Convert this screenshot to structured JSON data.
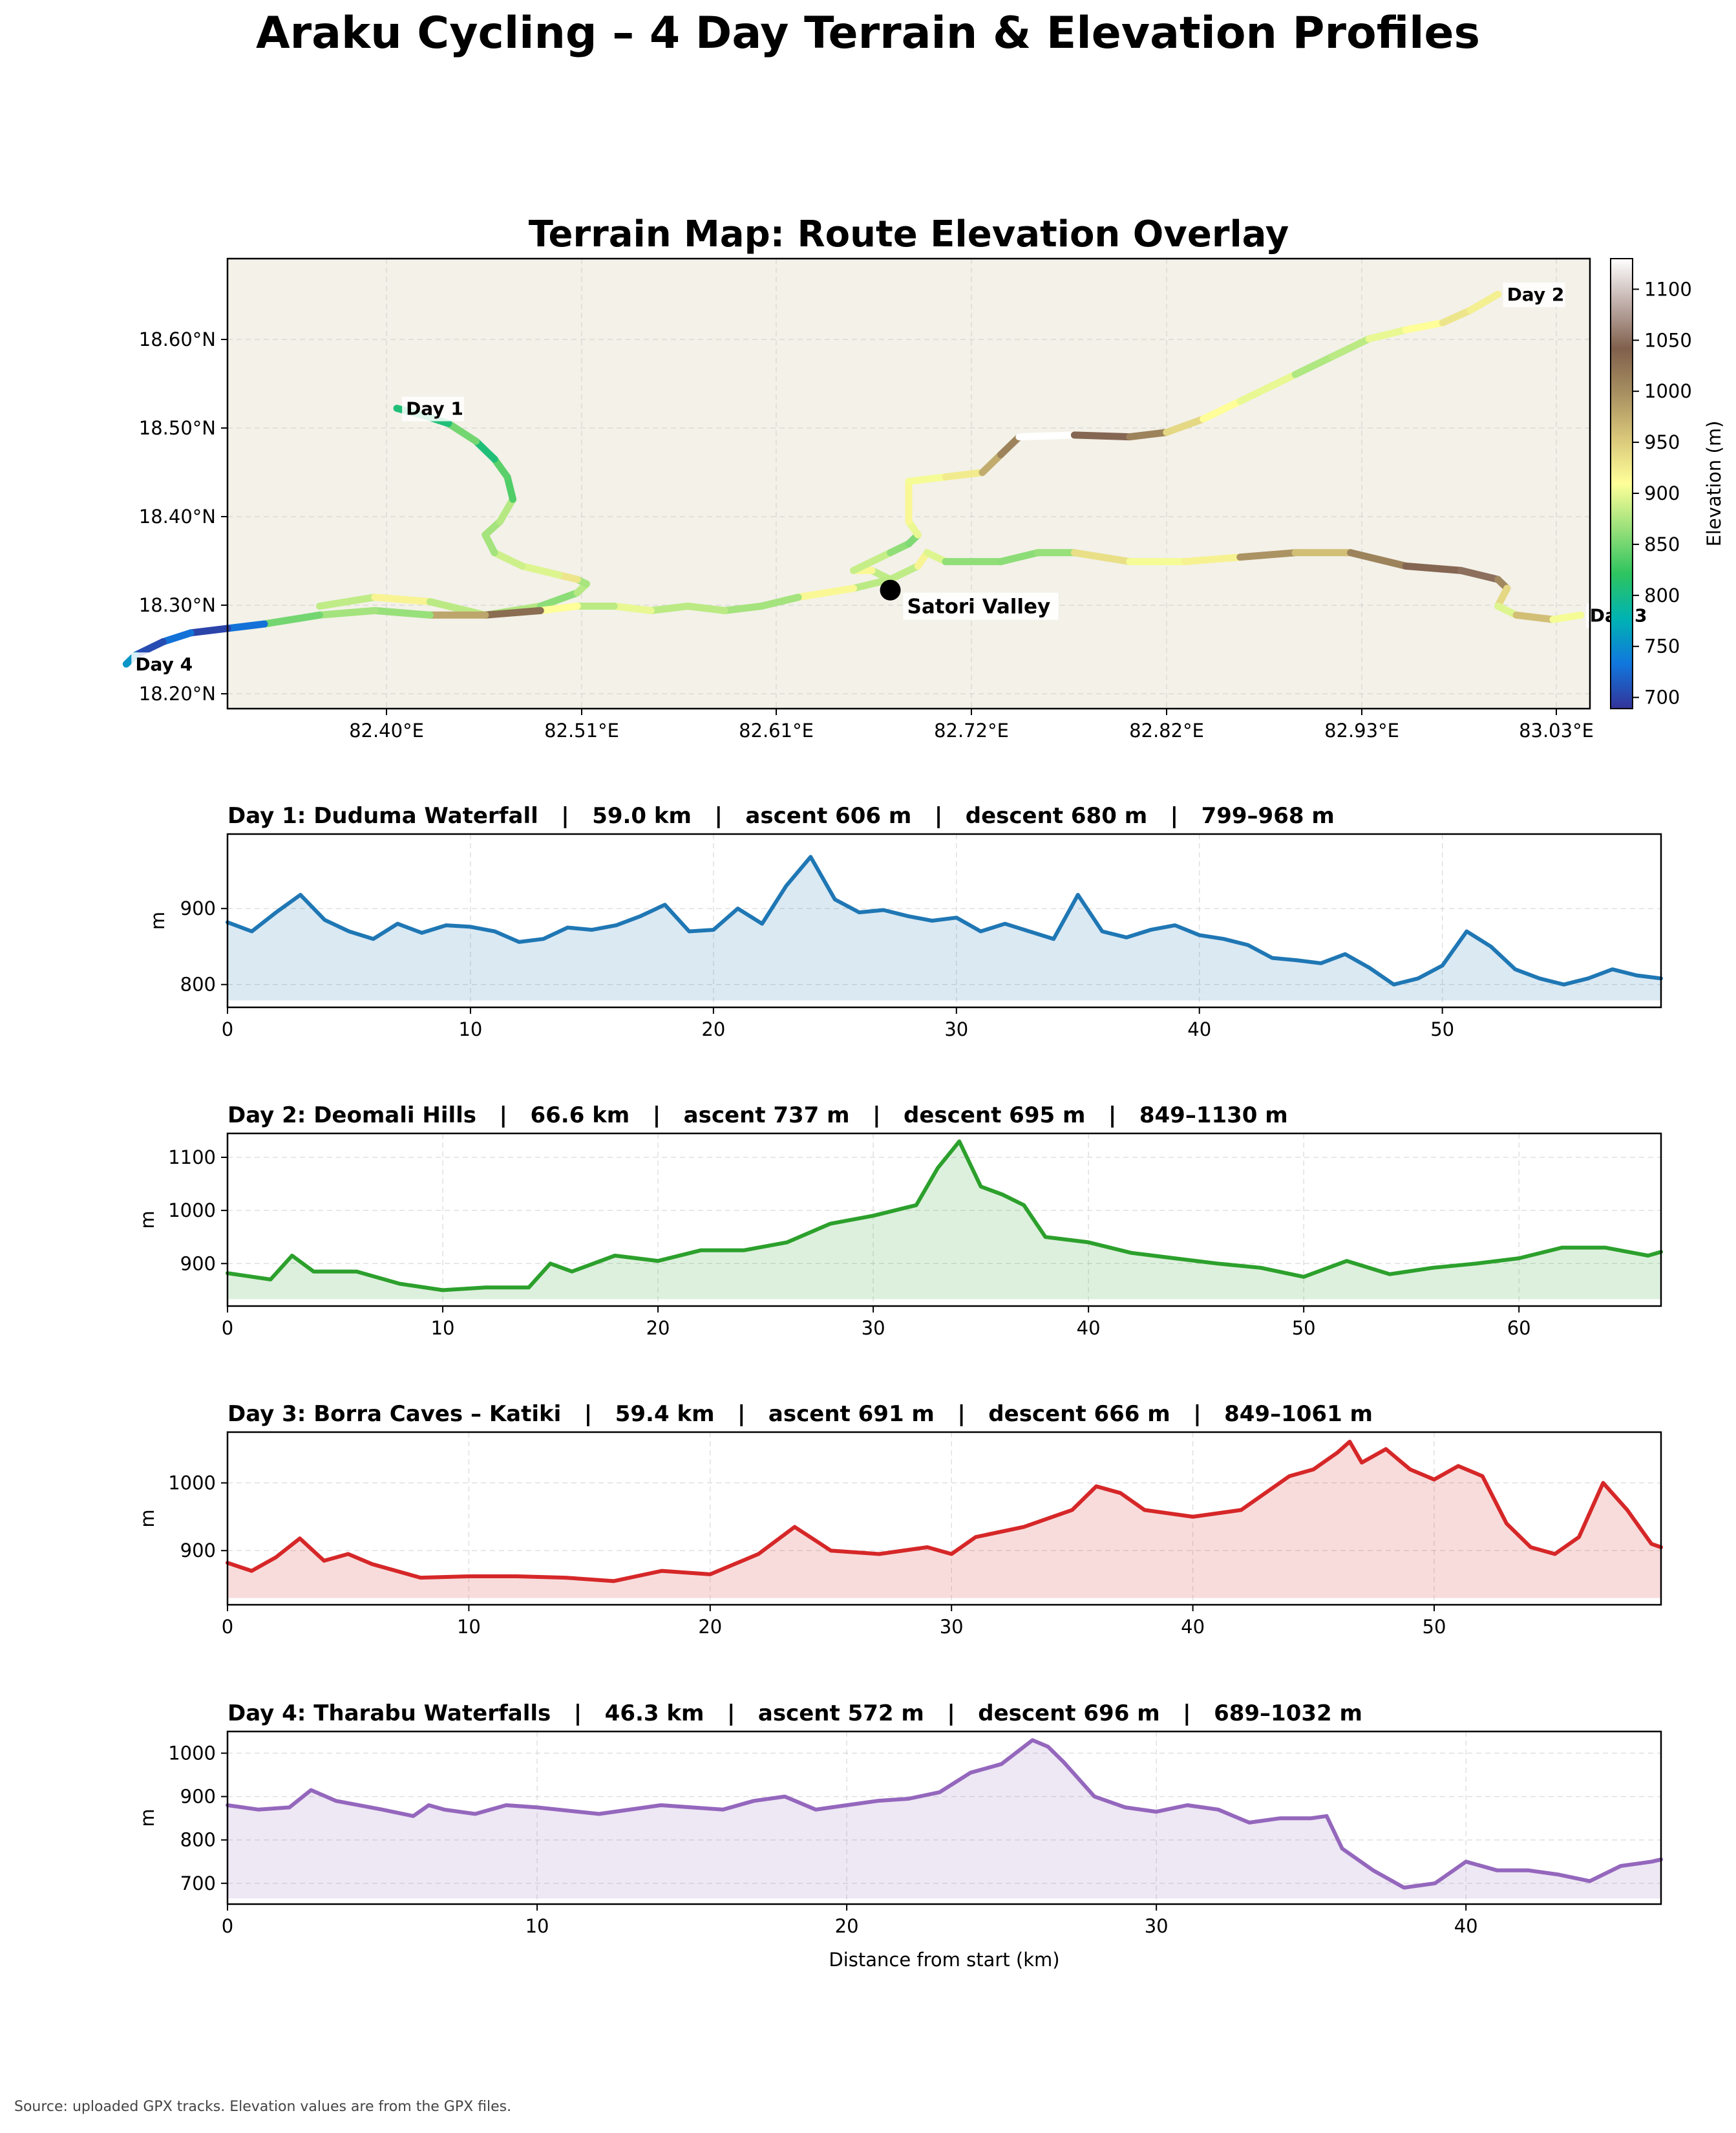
{
  "title": "Araku Cycling – 4 Day Terrain & Elevation Profiles",
  "footer": "Source: uploaded GPX tracks. Elevation values are from the GPX files.",
  "chart_data": [
    {
      "type": "scatter",
      "title": "Terrain Map: Route Elevation Overlay",
      "xlim": [
        82.31,
        83.05
      ],
      "ylim": [
        18.185,
        18.69
      ],
      "x_tick_labels": [
        "82.40°E",
        "82.51°E",
        "82.61°E",
        "82.72°E",
        "82.82°E",
        "82.93°E",
        "83.03°E"
      ],
      "y_tick_labels": [
        "18.20°N",
        "18.30°N",
        "18.40°N",
        "18.50°N",
        "18.60°N"
      ],
      "grid": true,
      "colorbar": {
        "label": "Elevation (m)",
        "range": [
          689,
          1130
        ],
        "tick_labels": [
          "700",
          "750",
          "800",
          "850",
          "900",
          "950",
          "1000",
          "1050",
          "1100"
        ]
      },
      "poi": {
        "name": "Satori Valley",
        "lon": 82.67,
        "lat": 18.318
      },
      "tracks": [
        {
          "label": "Day 1",
          "points": [
            [
              82.36,
              18.3
            ],
            [
              82.39,
              18.31
            ],
            [
              82.42,
              18.305
            ],
            [
              82.45,
              18.29
            ],
            [
              82.48,
              18.3
            ],
            [
              82.5,
              18.315
            ],
            [
              82.505,
              18.325
            ],
            [
              82.5,
              18.33
            ],
            [
              82.49,
              18.335
            ],
            [
              82.47,
              18.345
            ],
            [
              82.455,
              18.36
            ],
            [
              82.45,
              18.38
            ],
            [
              82.458,
              18.395
            ],
            [
              82.465,
              18.42
            ],
            [
              82.462,
              18.445
            ],
            [
              82.455,
              18.465
            ],
            [
              82.445,
              18.485
            ],
            [
              82.43,
              18.505
            ],
            [
              82.415,
              18.515
            ],
            [
              82.402,
              18.522
            ]
          ]
        },
        {
          "label": "Day 2",
          "points": [
            [
              82.67,
              18.33
            ],
            [
              82.66,
              18.34
            ],
            [
              82.65,
              18.34
            ],
            [
              82.67,
              18.36
            ],
            [
              82.68,
              18.37
            ],
            [
              82.685,
              18.38
            ],
            [
              82.68,
              18.395
            ],
            [
              82.68,
              18.44
            ],
            [
              82.7,
              18.445
            ],
            [
              82.72,
              18.45
            ],
            [
              82.73,
              18.47
            ],
            [
              82.74,
              18.49
            ],
            [
              82.77,
              18.492
            ],
            [
              82.8,
              18.49
            ],
            [
              82.82,
              18.495
            ],
            [
              82.84,
              18.51
            ],
            [
              82.86,
              18.53
            ],
            [
              82.89,
              18.56
            ],
            [
              82.91,
              18.58
            ],
            [
              82.93,
              18.6
            ],
            [
              82.95,
              18.61
            ],
            [
              82.97,
              18.618
            ],
            [
              82.985,
              18.632
            ],
            [
              83.0,
              18.65
            ]
          ]
        },
        {
          "label": "Day 3",
          "points": [
            [
              82.67,
              18.33
            ],
            [
              82.685,
              18.345
            ],
            [
              82.69,
              18.36
            ],
            [
              82.7,
              18.35
            ],
            [
              82.73,
              18.35
            ],
            [
              82.75,
              18.36
            ],
            [
              82.77,
              18.36
            ],
            [
              82.8,
              18.35
            ],
            [
              82.83,
              18.35
            ],
            [
              82.86,
              18.355
            ],
            [
              82.89,
              18.36
            ],
            [
              82.92,
              18.36
            ],
            [
              82.95,
              18.345
            ],
            [
              82.98,
              18.34
            ],
            [
              83.0,
              18.33
            ],
            [
              83.005,
              18.32
            ],
            [
              83.0,
              18.3
            ],
            [
              83.01,
              18.29
            ],
            [
              83.03,
              18.285
            ],
            [
              83.045,
              18.29
            ]
          ]
        },
        {
          "label": "Day 4",
          "points": [
            [
              82.67,
              18.33
            ],
            [
              82.65,
              18.32
            ],
            [
              82.62,
              18.31
            ],
            [
              82.6,
              18.3
            ],
            [
              82.58,
              18.295
            ],
            [
              82.56,
              18.3
            ],
            [
              82.54,
              18.295
            ],
            [
              82.52,
              18.3
            ],
            [
              82.5,
              18.3
            ],
            [
              82.48,
              18.295
            ],
            [
              82.45,
              18.29
            ],
            [
              82.42,
              18.29
            ],
            [
              82.39,
              18.295
            ],
            [
              82.36,
              18.29
            ],
            [
              82.33,
              18.28
            ],
            [
              82.31,
              18.275
            ],
            [
              82.29,
              18.27
            ],
            [
              82.275,
              18.26
            ],
            [
              82.26,
              18.245
            ],
            [
              82.255,
              18.235
            ]
          ]
        }
      ]
    },
    {
      "type": "area",
      "title": "Day 1: Duduma Waterfall   |   59.0 km   |   ascent 606 m   |   descent 680 m   |   799–968 m",
      "xlabel": "",
      "ylabel": "m",
      "xlim": [
        0,
        59.0
      ],
      "ylim": [
        770,
        998
      ],
      "fill_base": 779,
      "xticks": [
        0,
        10,
        20,
        30,
        40,
        50
      ],
      "yticks": [
        800,
        900
      ],
      "color": "#1f77b4",
      "x": [
        0,
        1,
        2,
        3,
        4,
        5,
        6,
        7,
        8,
        9,
        10,
        11,
        12,
        13,
        14,
        15,
        16,
        17,
        18,
        19,
        20,
        21,
        22,
        23,
        24,
        25,
        26,
        27,
        28,
        29,
        30,
        31,
        32,
        33,
        34,
        35,
        36,
        37,
        38,
        39,
        40,
        41,
        42,
        43,
        44,
        45,
        46,
        47,
        48,
        49,
        50,
        51,
        52,
        53,
        54,
        55,
        56,
        57,
        58,
        59
      ],
      "y": [
        882,
        870,
        895,
        918,
        885,
        870,
        860,
        880,
        868,
        878,
        876,
        870,
        856,
        860,
        875,
        872,
        878,
        890,
        905,
        870,
        872,
        900,
        880,
        930,
        968,
        912,
        895,
        898,
        890,
        884,
        888,
        870,
        880,
        870,
        860,
        918,
        870,
        862,
        872,
        878,
        865,
        860,
        852,
        835,
        832,
        828,
        840,
        822,
        800,
        808,
        825,
        870,
        850,
        820,
        808,
        800,
        808,
        820,
        812,
        808
      ]
    },
    {
      "type": "area",
      "title": "Day 2: Deomali Hills   |   66.6 km   |   ascent 737 m   |   descent 695 m   |   849–1130 m",
      "xlabel": "",
      "ylabel": "m",
      "xlim": [
        0,
        66.6
      ],
      "ylim": [
        820,
        1145
      ],
      "fill_base": 833,
      "xticks": [
        0,
        10,
        20,
        30,
        40,
        50,
        60
      ],
      "yticks": [
        900,
        1000,
        1100
      ],
      "color": "#2ca02c",
      "x": [
        0,
        2,
        3,
        4,
        6,
        8,
        10,
        12,
        14,
        15,
        16,
        18,
        20,
        22,
        24,
        26,
        28,
        30,
        32,
        33,
        34,
        35,
        36,
        37,
        38,
        40,
        42,
        44,
        46,
        48,
        50,
        52,
        54,
        56,
        58,
        60,
        62,
        64,
        66,
        66.6
      ],
      "y": [
        882,
        870,
        915,
        885,
        885,
        862,
        850,
        855,
        855,
        900,
        885,
        915,
        905,
        925,
        925,
        940,
        975,
        990,
        1010,
        1080,
        1130,
        1045,
        1030,
        1010,
        950,
        940,
        920,
        910,
        900,
        892,
        875,
        905,
        880,
        892,
        900,
        910,
        930,
        930,
        915,
        922
      ]
    },
    {
      "type": "area",
      "title": "Day 3: Borra Caves – Katiki   |   59.4 km   |   ascent 691 m   |   descent 666 m   |   849–1061 m",
      "xlabel": "",
      "ylabel": "m",
      "xlim": [
        0,
        59.4
      ],
      "ylim": [
        820,
        1075
      ],
      "fill_base": 830,
      "xticks": [
        0,
        10,
        20,
        30,
        40,
        50
      ],
      "yticks": [
        900,
        1000
      ],
      "color": "#d62728",
      "x": [
        0,
        1,
        2,
        3,
        4,
        5,
        6,
        8,
        10,
        12,
        14,
        16,
        18,
        20,
        22,
        23.5,
        25,
        27,
        29,
        30,
        31,
        33,
        35,
        36,
        37,
        38,
        40,
        42,
        44,
        45,
        46,
        46.5,
        47,
        48,
        49,
        50,
        51,
        52,
        53,
        54,
        55,
        56,
        57,
        58,
        59,
        59.4
      ],
      "y": [
        882,
        870,
        890,
        918,
        885,
        895,
        880,
        860,
        862,
        862,
        860,
        855,
        870,
        865,
        895,
        935,
        900,
        895,
        905,
        895,
        920,
        935,
        960,
        995,
        985,
        960,
        950,
        960,
        1010,
        1020,
        1045,
        1061,
        1030,
        1050,
        1020,
        1005,
        1025,
        1010,
        940,
        905,
        895,
        920,
        1000,
        960,
        910,
        905
      ]
    },
    {
      "type": "area",
      "title": "Day 4: Tharabu Waterfalls   |   46.3 km   |   ascent 572 m   |   descent 696 m   |   689–1032 m",
      "xlabel": "Distance from start (km)",
      "ylabel": "m",
      "xlim": [
        0,
        46.3
      ],
      "ylim": [
        652,
        1050
      ],
      "fill_base": 665,
      "xticks": [
        0,
        10,
        20,
        30,
        40
      ],
      "yticks": [
        700,
        800,
        900,
        1000
      ],
      "color": "#9467bd",
      "x": [
        0,
        1,
        2,
        2.7,
        3.5,
        5,
        6,
        6.5,
        7,
        8,
        9,
        10,
        12,
        14,
        16,
        17,
        18,
        19,
        20,
        21,
        22,
        23,
        24,
        25,
        26,
        26.5,
        27,
        28,
        29,
        30,
        31,
        32,
        33,
        34,
        35,
        35.5,
        36,
        37,
        38,
        39,
        40,
        41,
        42,
        43,
        44,
        45,
        46,
        46.3
      ],
      "y": [
        880,
        870,
        875,
        915,
        890,
        870,
        855,
        880,
        870,
        860,
        880,
        875,
        860,
        880,
        870,
        890,
        900,
        870,
        880,
        890,
        895,
        910,
        955,
        975,
        1030,
        1015,
        980,
        900,
        875,
        865,
        880,
        870,
        840,
        850,
        850,
        855,
        780,
        730,
        690,
        700,
        750,
        730,
        730,
        720,
        705,
        740,
        750,
        755
      ]
    }
  ]
}
